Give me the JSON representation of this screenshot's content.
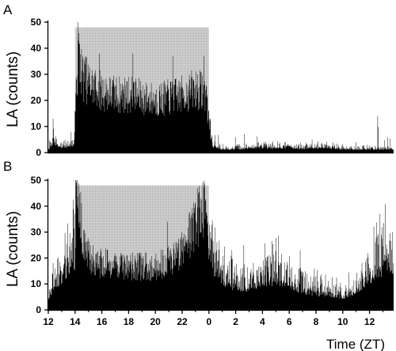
{
  "chart_data": [
    {
      "type": "bar",
      "panel": "A",
      "ylabel": "LA (counts)",
      "ylim": [
        0,
        50
      ],
      "yticks": [
        0,
        10,
        20,
        30,
        40,
        50
      ],
      "xlim": [
        12,
        13.8
      ],
      "shaded_region": {
        "start": 14,
        "end": 24,
        "height": 48
      },
      "profile": [
        [
          12.0,
          1
        ],
        [
          12.2,
          2
        ],
        [
          12.4,
          3
        ],
        [
          12.6,
          2
        ],
        [
          13.0,
          1.5
        ],
        [
          13.5,
          2
        ],
        [
          13.9,
          2.5
        ],
        [
          14.05,
          18
        ],
        [
          14.2,
          36
        ],
        [
          14.5,
          27
        ],
        [
          15.0,
          24
        ],
        [
          16.0,
          21
        ],
        [
          17.0,
          20
        ],
        [
          18.0,
          20
        ],
        [
          19.0,
          19
        ],
        [
          20.0,
          18
        ],
        [
          21.0,
          19
        ],
        [
          22.0,
          20
        ],
        [
          23.0,
          22
        ],
        [
          23.8,
          21
        ],
        [
          23.95,
          12
        ],
        [
          24.2,
          2
        ],
        [
          25.0,
          1
        ],
        [
          26.0,
          1
        ],
        [
          27.0,
          1.5
        ],
        [
          28.0,
          1.5
        ],
        [
          29.0,
          1.5
        ],
        [
          30.0,
          1.5
        ],
        [
          31.0,
          1.2
        ],
        [
          32.0,
          1.5
        ],
        [
          33.0,
          1.5
        ],
        [
          34.0,
          1.0
        ],
        [
          37.8,
          1.0
        ]
      ],
      "spikes": [
        [
          12.35,
          13
        ],
        [
          14.25,
          43
        ],
        [
          15.8,
          38
        ],
        [
          18.3,
          38
        ],
        [
          21.3,
          37
        ],
        [
          23.6,
          37
        ],
        [
          36.6,
          14
        ]
      ]
    },
    {
      "type": "bar",
      "panel": "B",
      "ylabel": "LA (counts)",
      "ylim": [
        0,
        50
      ],
      "yticks": [
        0,
        10,
        20,
        30,
        40,
        50
      ],
      "xlim": [
        12,
        13.8
      ],
      "xticks": [
        "12",
        "14",
        "16",
        "18",
        "20",
        "22",
        "0",
        "2",
        "4",
        "6",
        "8",
        "10",
        "12"
      ],
      "xlabel": "Time (ZT)",
      "shaded_region": {
        "start": 14,
        "end": 24,
        "height": 48
      },
      "profile": [
        [
          12.0,
          4
        ],
        [
          12.5,
          8
        ],
        [
          13.0,
          10
        ],
        [
          13.5,
          13
        ],
        [
          13.95,
          15
        ],
        [
          14.05,
          45
        ],
        [
          14.3,
          35
        ],
        [
          14.6,
          24
        ],
        [
          15.0,
          18
        ],
        [
          16.0,
          16
        ],
        [
          17.0,
          16
        ],
        [
          18.0,
          15
        ],
        [
          19.0,
          15
        ],
        [
          20.0,
          15
        ],
        [
          21.0,
          17
        ],
        [
          21.8,
          20
        ],
        [
          22.5,
          26
        ],
        [
          23.3,
          34
        ],
        [
          23.8,
          38
        ],
        [
          23.95,
          20
        ],
        [
          24.3,
          13
        ],
        [
          25.0,
          9
        ],
        [
          26.0,
          7
        ],
        [
          27.0,
          7
        ],
        [
          28.0,
          9
        ],
        [
          29.0,
          9
        ],
        [
          30.0,
          8
        ],
        [
          31.0,
          6
        ],
        [
          32.0,
          5
        ],
        [
          33.0,
          5
        ],
        [
          34.0,
          4
        ],
        [
          35.0,
          6
        ],
        [
          36.5,
          12
        ],
        [
          37.8,
          14
        ]
      ],
      "spikes": [
        [
          14.1,
          49
        ],
        [
          20.9,
          34
        ],
        [
          22.5,
          37
        ],
        [
          26.6,
          25
        ],
        [
          30.8,
          23
        ],
        [
          37.2,
          19
        ]
      ]
    }
  ]
}
